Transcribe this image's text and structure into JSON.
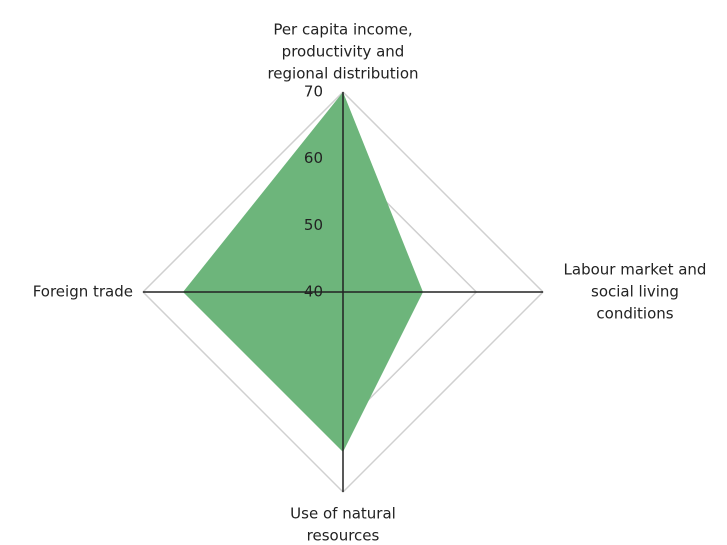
{
  "chart_data": {
    "type": "radar",
    "categories": [
      [
        "Per capita income,",
        "productivity and",
        "regional distribution"
      ],
      [
        "Labour market and",
        "social living",
        "conditions"
      ],
      [
        "Use of natural",
        "resources"
      ],
      [
        "Foreign trade"
      ]
    ],
    "values": [
      70,
      52,
      64,
      64
    ],
    "color": "#6db57b",
    "rlim": [
      40,
      70
    ],
    "rticks": [
      40,
      50,
      60,
      70
    ],
    "grid": true
  }
}
